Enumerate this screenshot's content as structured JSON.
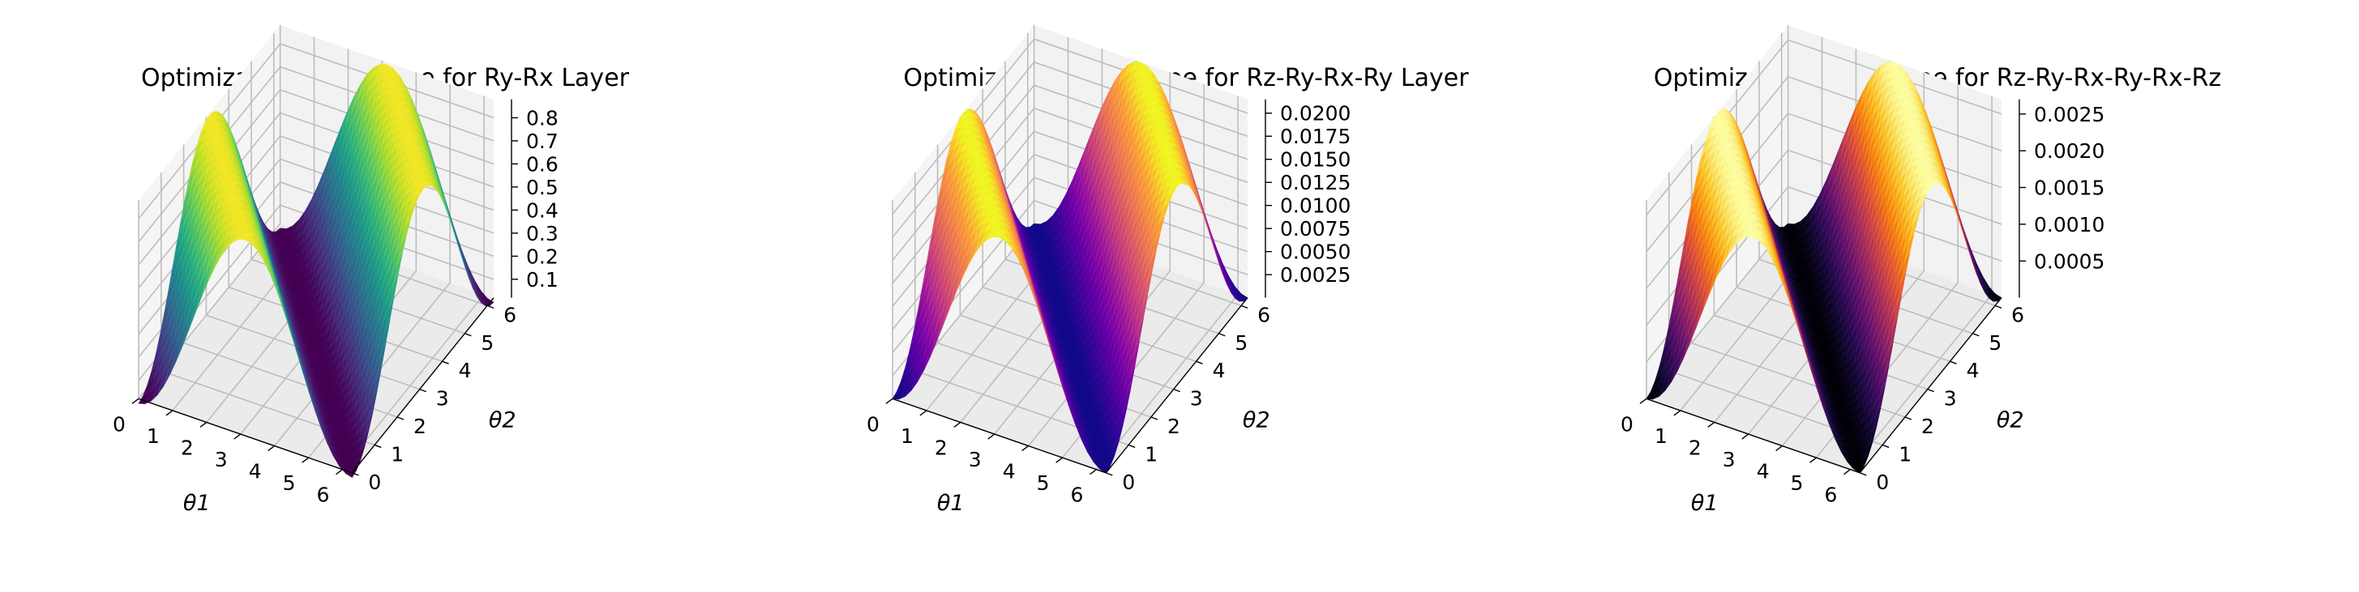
{
  "figure": {
    "background": "#ffffff"
  },
  "chart_data": [
    {
      "type": "surface3d",
      "title": "Optimization Landscape for Ry-Rx Layer",
      "xlabel": "θ1",
      "ylabel": "θ2",
      "zlabel": "",
      "xlim": [
        0,
        6.283
      ],
      "ylim": [
        0,
        6.283
      ],
      "zlim": [
        0.02,
        0.88
      ],
      "xticks": [
        "0",
        "1",
        "2",
        "3",
        "4",
        "5",
        "6"
      ],
      "yticks": [
        "0",
        "1",
        "2",
        "3",
        "4",
        "5",
        "6"
      ],
      "zticks": [
        "0.1",
        "0.2",
        "0.3",
        "0.4",
        "0.5",
        "0.6",
        "0.7",
        "0.8"
      ],
      "colormap": "viridis",
      "model": {
        "a": 0.87,
        "b": 0,
        "c": 0,
        "d": 0
      }
    },
    {
      "type": "surface3d",
      "title": "Optimization Landscape for Rz-Ry-Rx-Ry Layer",
      "xlabel": "θ1",
      "ylabel": "θ2",
      "zlabel": "",
      "xlim": [
        0,
        6.283
      ],
      "ylim": [
        0,
        6.283
      ],
      "zlim": [
        0.0,
        0.0215
      ],
      "xticks": [
        "0",
        "1",
        "2",
        "3",
        "4",
        "5",
        "6"
      ],
      "yticks": [
        "0",
        "1",
        "2",
        "3",
        "4",
        "5",
        "6"
      ],
      "zticks": [
        "0.0025",
        "0.0050",
        "0.0075",
        "0.0100",
        "0.0125",
        "0.0150",
        "0.0175",
        "0.0200"
      ],
      "colormap": "plasma",
      "model": {
        "a": 0.0215,
        "b": 0,
        "c": 0,
        "d": 0
      }
    },
    {
      "type": "surface3d",
      "title": "Optimization Landscape for Rz-Ry-Rx-Ry-Rx-Rz",
      "xlabel": "θ1",
      "ylabel": "θ2",
      "zlabel": "",
      "xlim": [
        0,
        6.283
      ],
      "ylim": [
        0,
        6.283
      ],
      "zlim": [
        0.0,
        0.0027
      ],
      "xticks": [
        "0",
        "1",
        "2",
        "3",
        "4",
        "5",
        "6"
      ],
      "yticks": [
        "0",
        "1",
        "2",
        "3",
        "4",
        "5",
        "6"
      ],
      "zticks": [
        "0.0005",
        "0.0010",
        "0.0015",
        "0.0020",
        "0.0025"
      ],
      "colormap": "inferno",
      "model": {
        "a": 0.0027,
        "b": 0,
        "c": 0,
        "d": 0
      }
    }
  ]
}
